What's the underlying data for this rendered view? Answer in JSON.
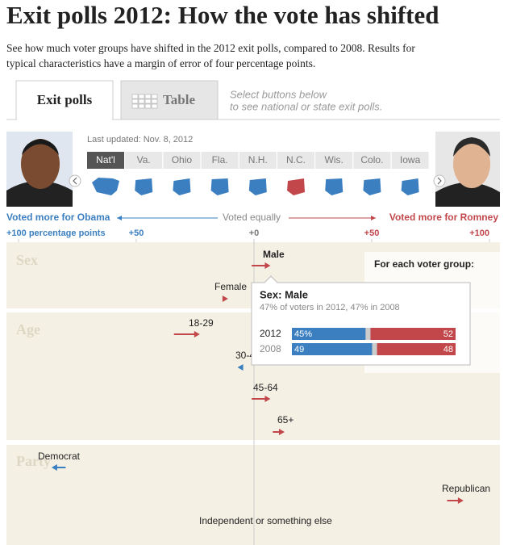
{
  "header": {
    "title": "Exit polls 2012: How the vote has shifted",
    "description": [
      "See how much voter groups have shifted in the 2012 exit polls, compared to 2008. Results for",
      "typical characteristics have a margin of error of four percentage points."
    ]
  },
  "tabs": [
    "Exit polls",
    "Table"
  ],
  "active_tab": 0,
  "tab_hint": [
    "Select buttons below",
    "to see national or state exit polls."
  ],
  "last_updated": "Last updated: Nov. 8, 2012",
  "states": [
    "Nat'l",
    "Va.",
    "Ohio",
    "Fla.",
    "N.H.",
    "N.C.",
    "Wis.",
    "Colo.",
    "Iowa"
  ],
  "selected_state": 0,
  "axis": {
    "left": "Voted more for Obama",
    "center": "Voted equally",
    "right": "Voted more for Romney",
    "ticks": [
      {
        "value": -100,
        "label": "+100 percentage points"
      },
      {
        "value": -50,
        "label": "+50"
      },
      {
        "value": 0,
        "label": "+0"
      },
      {
        "value": 50,
        "label": "+50"
      },
      {
        "value": 100,
        "label": "+100"
      }
    ]
  },
  "sections": [
    {
      "name": "Sex",
      "groups": [
        {
          "label": "Male",
          "margin_2008": -1,
          "margin_2012": 7
        },
        {
          "label": "Female",
          "margin_2008": -13,
          "margin_2012": -11
        }
      ]
    },
    {
      "name": "Age",
      "groups": [
        {
          "label": "18-29",
          "margin_2008": -34,
          "margin_2012": -23
        },
        {
          "label": "30-44",
          "margin_2008": -6,
          "margin_2012": -7
        },
        {
          "label": "45-64",
          "margin_2008": -1,
          "margin_2012": 7
        },
        {
          "label": "65+",
          "margin_2008": 8,
          "margin_2012": 13
        }
      ]
    },
    {
      "name": "Party",
      "groups": [
        {
          "label": "Democrat",
          "margin_2008": -80,
          "margin_2012": -86
        },
        {
          "label": "Republican",
          "margin_2008": 82,
          "margin_2012": 89
        },
        {
          "label": "Independent or something else"
        }
      ]
    }
  ],
  "tooltip": {
    "title": "Sex: Male",
    "subtitle": "47% of voters in 2012, 47% in 2008",
    "rows": [
      {
        "year": "2012",
        "obama": {
          "value": 45,
          "label": "45%"
        },
        "romney": 52
      },
      {
        "year": "2008",
        "obama": 49,
        "romney": 48
      }
    ]
  },
  "legend": {
    "title": "For each voter group:"
  }
}
